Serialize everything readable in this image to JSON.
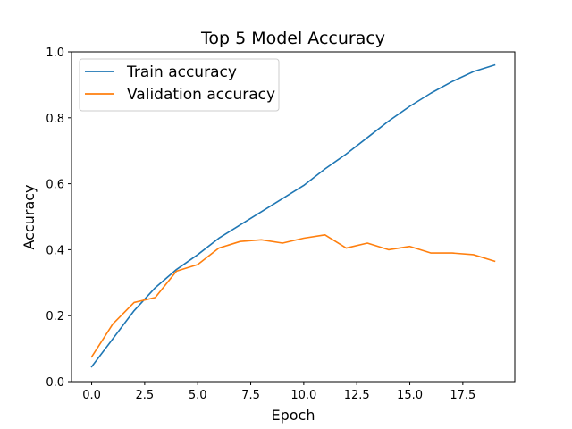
{
  "chart_data": {
    "type": "line",
    "title": "Top 5 Model Accuracy",
    "xlabel": "Epoch",
    "ylabel": "Accuracy",
    "xlim": [
      -0.95,
      19.95
    ],
    "ylim": [
      0.0,
      1.0
    ],
    "xticks": [
      0,
      2.5,
      5,
      7.5,
      10,
      12.5,
      15,
      17.5
    ],
    "xtick_labels": [
      "0.0",
      "2.5",
      "5.0",
      "7.5",
      "10.0",
      "12.5",
      "15.0",
      "17.5"
    ],
    "yticks": [
      0,
      0.2,
      0.4,
      0.6,
      0.8,
      1.0
    ],
    "ytick_labels": [
      "0.0",
      "0.2",
      "0.4",
      "0.6",
      "0.8",
      "1.0"
    ],
    "grid": false,
    "legend_position": "top-left",
    "x": [
      0,
      1,
      2,
      3,
      4,
      5,
      6,
      7,
      8,
      9,
      10,
      11,
      12,
      13,
      14,
      15,
      16,
      17,
      18,
      19
    ],
    "series": [
      {
        "name": "Train accuracy",
        "color": "#1f77b4",
        "values": [
          0.045,
          0.13,
          0.215,
          0.285,
          0.34,
          0.385,
          0.435,
          0.475,
          0.515,
          0.555,
          0.595,
          0.645,
          0.69,
          0.74,
          0.79,
          0.835,
          0.875,
          0.91,
          0.94,
          0.96
        ]
      },
      {
        "name": "Validation accuracy",
        "color": "#ff7f0e",
        "values": [
          0.075,
          0.175,
          0.24,
          0.255,
          0.335,
          0.355,
          0.405,
          0.425,
          0.43,
          0.42,
          0.435,
          0.445,
          0.405,
          0.42,
          0.4,
          0.41,
          0.39,
          0.39,
          0.385,
          0.365
        ]
      }
    ]
  }
}
